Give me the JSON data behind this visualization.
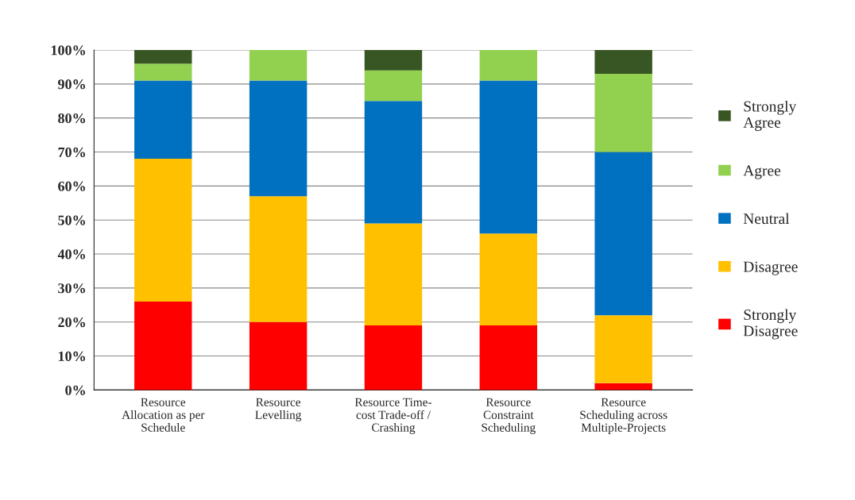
{
  "chart_data": {
    "type": "bar",
    "stacked": true,
    "categories": [
      "Resource\nAllocation as per\nSchedule",
      "Resource\nLevelling",
      "Resource Time-\ncost Trade-off /\nCrashing",
      "Resource\nConstraint\nScheduling",
      "Resource\nScheduling across\nMultiple-Projects"
    ],
    "series": [
      {
        "name": "Strongly\nDisagree",
        "color": "#ff0000",
        "values": [
          26,
          20,
          19,
          19,
          2
        ]
      },
      {
        "name": "Disagree",
        "color": "#ffc000",
        "values": [
          42,
          37,
          30,
          27,
          20
        ]
      },
      {
        "name": "Neutral",
        "color": "#0070c0",
        "values": [
          23,
          34,
          36,
          45,
          48
        ]
      },
      {
        "name": "Agree",
        "color": "#92d050",
        "values": [
          5,
          9,
          9,
          9,
          23
        ]
      },
      {
        "name": "Strongly\nAgree",
        "color": "#375623",
        "values": [
          4,
          0,
          6,
          0,
          7
        ]
      }
    ],
    "ylim": [
      0,
      100
    ],
    "yticks": [
      {
        "value": 0,
        "label": "0%"
      },
      {
        "value": 10,
        "label": "10%"
      },
      {
        "value": 20,
        "label": "20%"
      },
      {
        "value": 30,
        "label": "30%"
      },
      {
        "value": 40,
        "label": "40%"
      },
      {
        "value": 50,
        "label": "50%"
      },
      {
        "value": 60,
        "label": "60%"
      },
      {
        "value": 70,
        "label": "70%"
      },
      {
        "value": 80,
        "label": "80%"
      },
      {
        "value": 90,
        "label": "90%"
      },
      {
        "value": 100,
        "label": "100%"
      }
    ],
    "grid": "y",
    "legend": "right"
  }
}
